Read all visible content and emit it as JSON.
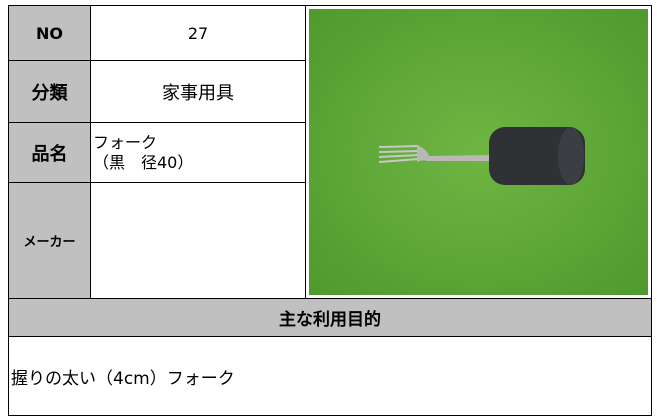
{
  "rows": [
    {
      "label": "NO",
      "value": "27"
    },
    {
      "label": "分類",
      "value": "家事用具"
    },
    {
      "label": "品名",
      "value_lines": [
        "フォーク",
        "（黒　径40）"
      ]
    },
    {
      "label": "メーカー"
    }
  ],
  "purpose": {
    "heading": "主な利用目的",
    "text": "握りの太い（4cm）フォーク"
  }
}
